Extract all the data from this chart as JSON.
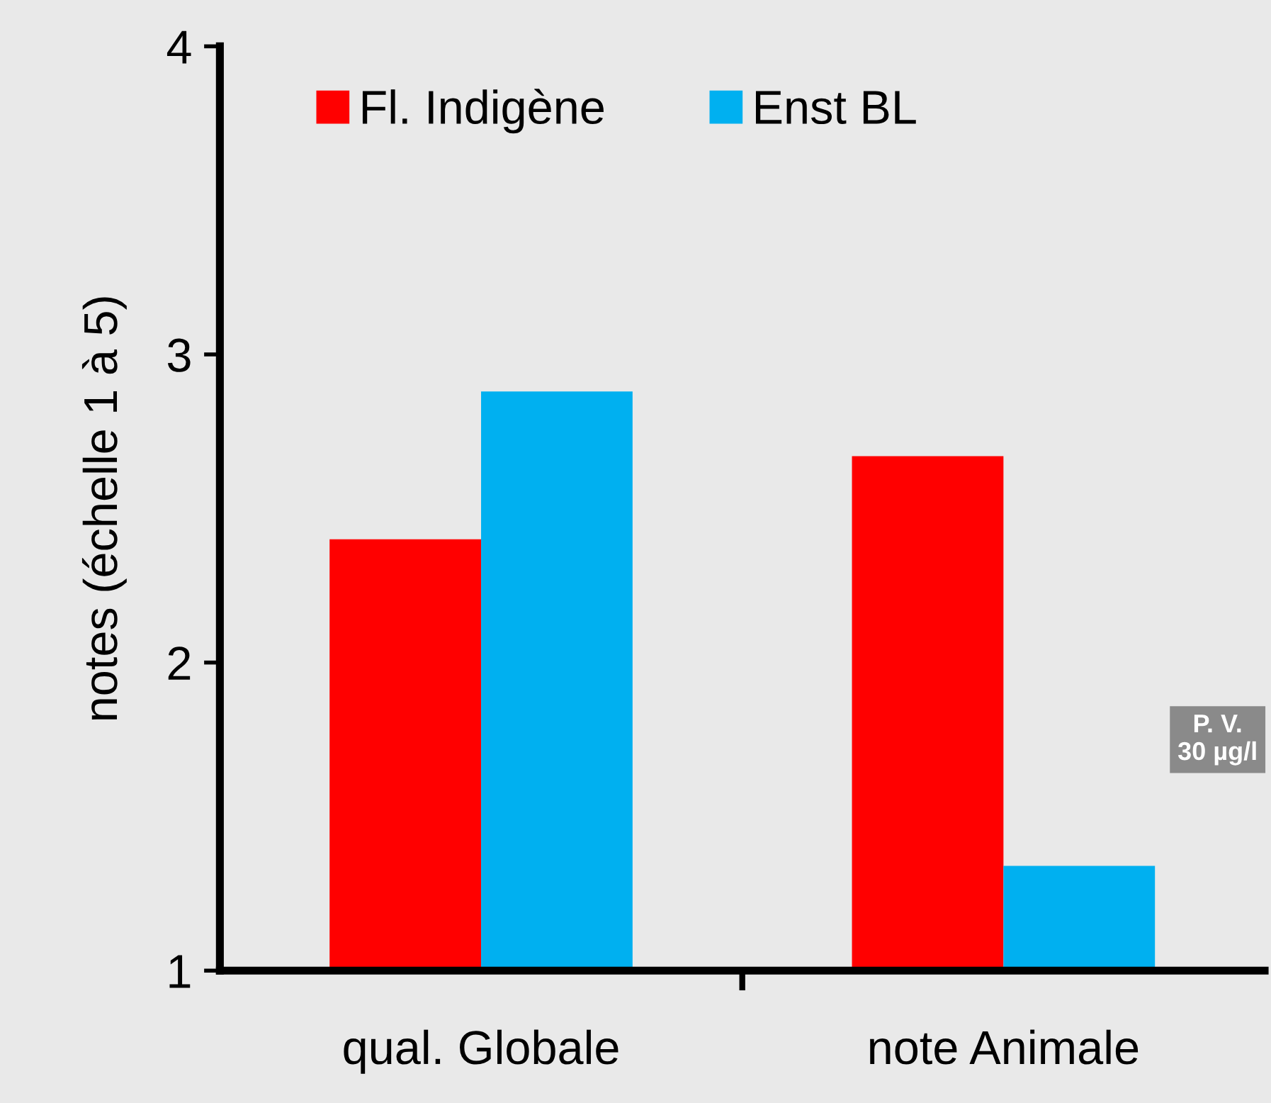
{
  "chart_data": {
    "type": "bar",
    "ylabel": "notes (échelle 1 à 5)",
    "categories": [
      "qual. Globale",
      "note Animale"
    ],
    "series": [
      {
        "name": "Fl. Indigène",
        "color": "#ff0000",
        "values": [
          2.4,
          2.67
        ]
      },
      {
        "name": "Enst BL",
        "color": "#00b0f0",
        "values": [
          2.88,
          1.34
        ]
      }
    ],
    "ylim": [
      1,
      4
    ],
    "yticks": [
      1,
      2,
      3,
      4
    ],
    "grid": false,
    "legend": "top",
    "annotations": [
      {
        "text": "P. V.\n30 µg/l"
      }
    ]
  }
}
